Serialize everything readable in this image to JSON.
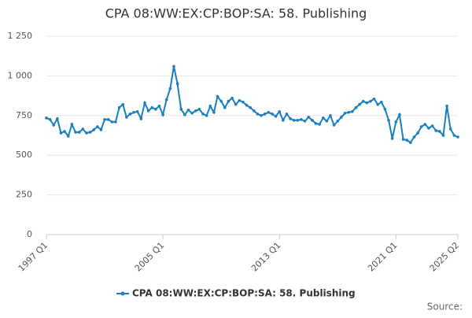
{
  "chart_data": {
    "type": "line",
    "title": "CPA 08:WW:EX:CP:BOP:SA: 58. Publishing",
    "source": "Source:",
    "categories": [
      "1997 Q1",
      null,
      null,
      null,
      null,
      null,
      null,
      null,
      null,
      null,
      null,
      null,
      null,
      null,
      null,
      null,
      null,
      null,
      null,
      null,
      null,
      null,
      null,
      null,
      null,
      null,
      null,
      null,
      null,
      null,
      null,
      null,
      "2005 Q1",
      null,
      null,
      null,
      null,
      null,
      null,
      null,
      null,
      null,
      null,
      null,
      null,
      null,
      null,
      null,
      null,
      null,
      null,
      null,
      null,
      null,
      null,
      null,
      null,
      null,
      null,
      null,
      null,
      null,
      null,
      null,
      "2013 Q1",
      null,
      null,
      null,
      null,
      null,
      null,
      null,
      null,
      null,
      null,
      null,
      null,
      null,
      null,
      null,
      null,
      null,
      null,
      null,
      null,
      null,
      null,
      null,
      null,
      null,
      null,
      null,
      null,
      null,
      null,
      null,
      "2021 Q1",
      null,
      null,
      null,
      null,
      null,
      null,
      null,
      null,
      null,
      null,
      null,
      null,
      null,
      null,
      null,
      null,
      "2025 Q2"
    ],
    "series": [
      {
        "name": "CPA 08:WW:EX:CP:BOP:SA: 58. Publishing",
        "color": "#1a7ec0",
        "values": [
          735,
          725,
          690,
          730,
          640,
          650,
          620,
          695,
          645,
          645,
          665,
          640,
          645,
          660,
          680,
          660,
          725,
          725,
          710,
          710,
          800,
          820,
          740,
          760,
          770,
          775,
          730,
          830,
          780,
          800,
          790,
          810,
          755,
          850,
          920,
          1060,
          950,
          790,
          755,
          785,
          765,
          780,
          790,
          760,
          750,
          810,
          770,
          870,
          840,
          800,
          840,
          860,
          820,
          845,
          835,
          815,
          800,
          780,
          760,
          750,
          760,
          770,
          760,
          745,
          775,
          720,
          760,
          730,
          720,
          720,
          725,
          715,
          740,
          720,
          700,
          695,
          735,
          715,
          750,
          690,
          715,
          740,
          765,
          770,
          775,
          800,
          820,
          840,
          830,
          840,
          855,
          820,
          835,
          790,
          720,
          605,
          710,
          755,
          600,
          595,
          580,
          615,
          640,
          680,
          695,
          670,
          685,
          655,
          650,
          625,
          810,
          665,
          625,
          615
        ]
      }
    ],
    "ylim": [
      0,
      1250
    ],
    "yticks": [
      0,
      250,
      500,
      750,
      {
        "value": 1000,
        "label": "1 000"
      },
      {
        "value": 1250,
        "label": "1 250"
      }
    ],
    "grid": true
  }
}
